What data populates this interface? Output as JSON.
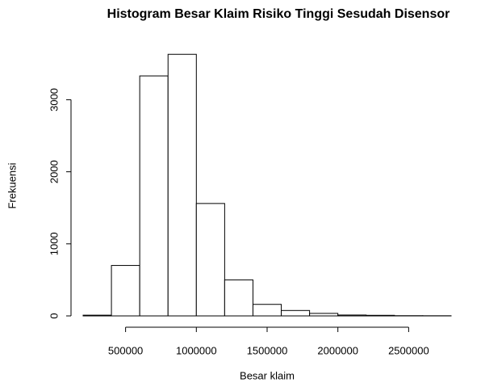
{
  "chart_data": {
    "type": "histogram",
    "title": "Histogram Besar Klaim Risiko Tinggi Sesudah Disensor",
    "x_label": "Besar klaim",
    "y_label": "Frekuensi",
    "bins": [
      200000,
      400000,
      600000,
      800000,
      1000000,
      1200000,
      1400000,
      1600000,
      1800000,
      2000000,
      2200000,
      2400000,
      2600000,
      2800000
    ],
    "counts": [
      10,
      700,
      3330,
      3630,
      1560,
      500,
      160,
      75,
      35,
      12,
      8,
      3,
      2
    ],
    "color": "#ffffff",
    "edge_color": "#000000",
    "xlim": [
      200000,
      2800000
    ],
    "xticks": [
      500000,
      1000000,
      1500000,
      2000000,
      2500000
    ],
    "ylim": [
      0,
      3700
    ],
    "yticks": [
      0,
      1000,
      2000,
      3000
    ]
  }
}
